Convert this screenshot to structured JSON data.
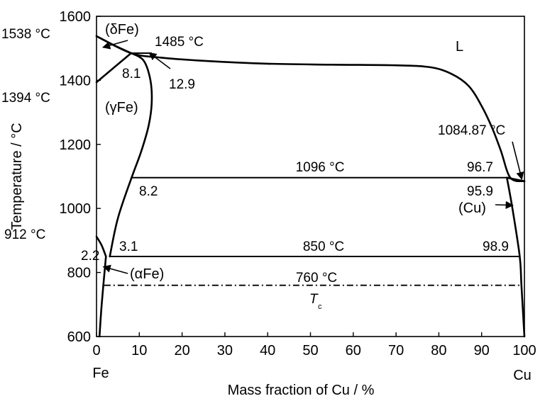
{
  "chart_data": {
    "type": "phase-diagram",
    "xlabel": "Mass fraction of Cu / %",
    "ylabel": "Temperature / °C",
    "xlim": [
      0,
      100
    ],
    "ylim": [
      600,
      1600
    ],
    "x_ticks": [
      "0",
      "10",
      "20",
      "30",
      "40",
      "50",
      "60",
      "70",
      "80",
      "90",
      "100"
    ],
    "y_ticks": [
      "600",
      "800",
      "1000",
      "1200",
      "1400",
      "1600"
    ],
    "x_end_labels": {
      "left": "Fe",
      "right": "Cu"
    },
    "phase_labels": {
      "liquid": "L",
      "delta_fe": "(δFe)",
      "gamma_fe": "(γFe)",
      "alpha_fe": "(αFe)",
      "cu": "(Cu)"
    },
    "temperature_labels": {
      "fe_melting": "1538 °C",
      "peritectic": "1485 °C",
      "gamma_delta": "1394 °C",
      "alpha_gamma": "912 °C",
      "cu_melting": "1084.87 °C",
      "monotectic_like": "1096 °C",
      "eutectoid": "850 °C",
      "curie": "760 °C"
    },
    "composition_labels": {
      "peritectic_left": "8.1",
      "peritectic_right": "12.9",
      "at_1096_left": "8.2",
      "at_1096_right_top": "96.7",
      "at_1096_right_bottom": "95.9",
      "at_850_left": "3.1",
      "at_850_alpha": "2.2",
      "at_850_right": "98.9"
    },
    "curie_label": {
      "main": "T",
      "sub": "c"
    },
    "isotherms": [
      {
        "name": "peritectic",
        "t": 1485,
        "x": [
          8.1,
          12.9
        ]
      },
      {
        "name": "1096",
        "t": 1096,
        "x": [
          8.2,
          96.7
        ]
      },
      {
        "name": "850",
        "t": 850,
        "x": [
          3.1,
          98.9
        ]
      },
      {
        "name": "curie",
        "t": 760,
        "x": [
          1.8,
          98.9
        ],
        "style": "dash-dot"
      }
    ],
    "boundaries": {
      "liquidus": [
        [
          0,
          1538
        ],
        [
          8.1,
          1485
        ],
        [
          15,
          1471
        ],
        [
          25,
          1461
        ],
        [
          40,
          1452
        ],
        [
          55,
          1449
        ],
        [
          70,
          1447
        ],
        [
          78,
          1441
        ],
        [
          83,
          1420
        ],
        [
          87,
          1382
        ],
        [
          90,
          1320
        ],
        [
          92.5,
          1250
        ],
        [
          94.5,
          1180
        ],
        [
          96.7,
          1096
        ],
        [
          100,
          1084.87
        ]
      ],
      "delta_solvus": [
        [
          0,
          1538
        ],
        [
          4,
          1510
        ],
        [
          8.1,
          1485
        ]
      ],
      "delta_gamma_upper": [
        [
          0,
          1394
        ],
        [
          8.1,
          1485
        ]
      ],
      "gamma_right": [
        [
          8.1,
          1485
        ],
        [
          11,
          1462
        ],
        [
          12.6,
          1400
        ],
        [
          12.9,
          1330
        ],
        [
          12.2,
          1260
        ],
        [
          10.5,
          1180
        ],
        [
          8.2,
          1096
        ],
        [
          5,
          970
        ],
        [
          3.1,
          850
        ]
      ],
      "gamma_alpha_left": [
        [
          0,
          912
        ],
        [
          1.2,
          885
        ],
        [
          2.2,
          850
        ]
      ],
      "alpha_solvus": [
        [
          2.2,
          850
        ],
        [
          1.6,
          760
        ],
        [
          1.1,
          680
        ],
        [
          0.7,
          600
        ]
      ],
      "cu_solidus": [
        [
          100,
          1084.87
        ],
        [
          95.9,
          1096
        ]
      ],
      "cu_solvus": [
        [
          95.9,
          1096
        ],
        [
          97.2,
          1000
        ],
        [
          98.9,
          850
        ],
        [
          99.3,
          760
        ],
        [
          100,
          600
        ]
      ]
    }
  }
}
